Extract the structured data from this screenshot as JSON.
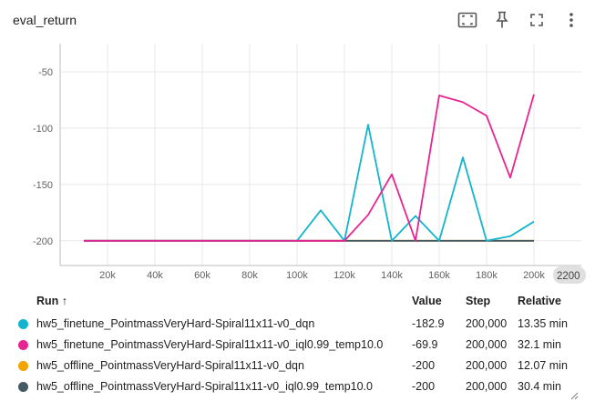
{
  "header": {
    "title": "eval_return"
  },
  "toolbar": {
    "icons": [
      "fit-domain-icon",
      "pin-icon",
      "fullscreen-icon",
      "more-vert-icon"
    ]
  },
  "chart_data": {
    "type": "line",
    "xlim": [
      0,
      220000
    ],
    "ylim": [
      -222,
      -25
    ],
    "xticks": [
      20000,
      40000,
      60000,
      80000,
      100000,
      120000,
      140000,
      160000,
      180000,
      200000
    ],
    "xtick_labels": [
      "20k",
      "40k",
      "60k",
      "80k",
      "100k",
      "120k",
      "140k",
      "160k",
      "180k",
      "200k"
    ],
    "yticks": [
      -50,
      -100,
      -150,
      -200
    ],
    "ytick_labels": [
      "-50",
      "-100",
      "-150",
      "-200"
    ],
    "x_edge_label": "2200",
    "grid": true,
    "series": [
      {
        "name": "hw5_offline_PointmassVeryHard-Spiral11x11-v0_dqn",
        "color": "#f4a300",
        "x": [
          10000,
          20000,
          30000,
          40000,
          50000,
          60000,
          70000,
          80000,
          90000,
          100000,
          110000,
          120000,
          130000,
          140000,
          150000,
          160000,
          170000,
          180000,
          190000,
          200000
        ],
        "y": [
          -200,
          -200,
          -200,
          -200,
          -200,
          -200,
          -200,
          -200,
          -200,
          -200,
          -200,
          -200,
          -200,
          -200,
          -200,
          -200,
          -200,
          -200,
          -200,
          -200
        ]
      },
      {
        "name": "hw5_offline_PointmassVeryHard-Spiral11x11-v0_iql0.99_temp10.0",
        "color": "#455a64",
        "x": [
          10000,
          20000,
          30000,
          40000,
          50000,
          60000,
          70000,
          80000,
          90000,
          100000,
          110000,
          120000,
          130000,
          140000,
          150000,
          160000,
          170000,
          180000,
          190000,
          200000
        ],
        "y": [
          -200,
          -200,
          -200,
          -200,
          -200,
          -200,
          -200,
          -200,
          -200,
          -200,
          -200,
          -200,
          -200,
          -200,
          -200,
          -200,
          -200,
          -200,
          -200,
          -200
        ]
      },
      {
        "name": "hw5_finetune_PointmassVeryHard-Spiral11x11-v0_dqn",
        "color": "#12b5cb",
        "x": [
          10000,
          20000,
          30000,
          40000,
          50000,
          60000,
          70000,
          80000,
          90000,
          100000,
          110000,
          120000,
          130000,
          140000,
          150000,
          160000,
          170000,
          180000,
          190000,
          200000
        ],
        "y": [
          -200,
          -200,
          -200,
          -200,
          -200,
          -200,
          -200,
          -200,
          -200,
          -200,
          -173,
          -200,
          -97,
          -200,
          -178,
          -200,
          -126,
          -200,
          -196,
          -183
        ]
      },
      {
        "name": "hw5_finetune_PointmassVeryHard-Spiral11x11-v0_iql0.99_temp10.0",
        "color": "#e52592",
        "x": [
          10000,
          20000,
          30000,
          40000,
          50000,
          60000,
          70000,
          80000,
          90000,
          100000,
          110000,
          120000,
          130000,
          140000,
          150000,
          160000,
          170000,
          180000,
          190000,
          200000
        ],
        "y": [
          -200,
          -200,
          -200,
          -200,
          -200,
          -200,
          -200,
          -200,
          -200,
          -200,
          -200,
          -200,
          -177,
          -141,
          -200,
          -71,
          -77,
          -89,
          -144,
          -70
        ]
      }
    ]
  },
  "legend": {
    "headers": {
      "run": "Run ↑",
      "value": "Value",
      "step": "Step",
      "relative": "Relative"
    },
    "rows": [
      {
        "name": "hw5_finetune_PointmassVeryHard-Spiral11x11-v0_dqn",
        "color": "#12b5cb",
        "value": "-182.9",
        "step": "200,000",
        "relative": "13.35 min"
      },
      {
        "name": "hw5_finetune_PointmassVeryHard-Spiral11x11-v0_iql0.99_temp10.0",
        "color": "#e52592",
        "value": "-69.9",
        "step": "200,000",
        "relative": "32.1 min"
      },
      {
        "name": "hw5_offline_PointmassVeryHard-Spiral11x11-v0_dqn",
        "color": "#f4a300",
        "value": "-200",
        "step": "200,000",
        "relative": "12.07 min"
      },
      {
        "name": "hw5_offline_PointmassVeryHard-Spiral11x11-v0_iql0.99_temp10.0",
        "color": "#455a64",
        "value": "-200",
        "step": "200,000",
        "relative": "30.4 min"
      }
    ]
  }
}
